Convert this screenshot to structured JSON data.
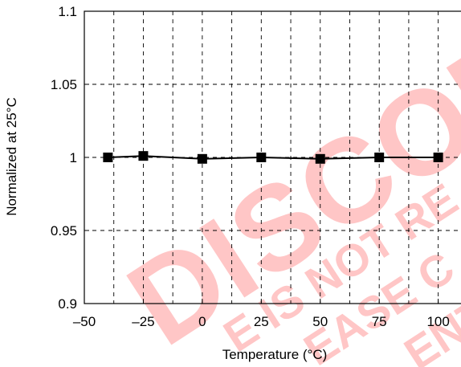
{
  "chart_data": {
    "type": "line",
    "title": "",
    "xlabel": "Temperature (°C)",
    "ylabel": "Normalized at 25°C",
    "xlim": [
      -50,
      110
    ],
    "ylim": [
      0.9,
      1.1
    ],
    "x_ticks": [
      -50,
      -25,
      0,
      25,
      50,
      75,
      100
    ],
    "x_tick_labels": [
      "–50",
      "–25",
      "0",
      "25",
      "50",
      "75",
      "100"
    ],
    "y_ticks": [
      0.9,
      0.95,
      1.0,
      1.05,
      1.1
    ],
    "y_tick_labels": [
      "0.9",
      "0.95",
      "1",
      "1.05",
      "1.1"
    ],
    "grid": true,
    "marker": "square",
    "series": [
      {
        "x": [
          -40,
          -25,
          0,
          25,
          50,
          75,
          100
        ],
        "y": [
          1.0,
          1.001,
          0.999,
          1.0,
          0.999,
          1.0,
          1.0
        ]
      }
    ],
    "colors": {
      "line": "#000000",
      "grid": "#000000",
      "watermark": "#ff0000"
    }
  },
  "watermark": {
    "main": "DISCON",
    "line1": "E IS NOT RE",
    "line2": "EASE C",
    "line3": "ENT"
  }
}
